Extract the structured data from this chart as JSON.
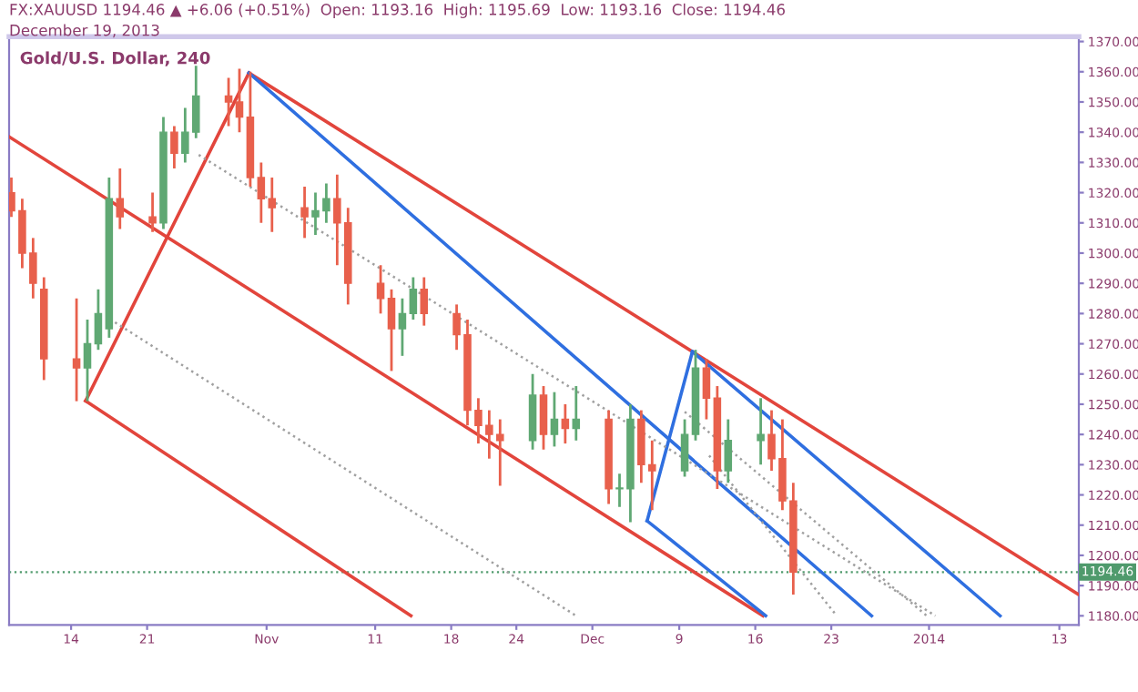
{
  "chart_data": {
    "type": "candlestick",
    "title": "Gold/U.S. Dollar, 240",
    "annotations": [
      "FX:XAUUSD 1194.46 ▲ +6.06 (+0.51%)  Open: 1193.16  High: 1195.69  Low: 1193.16  Close: 1194.46",
      "December 19, 2013"
    ],
    "xlim": [
      "2013-10-08T07:00",
      "2014-01-14T19:00"
    ],
    "ylim": [
      1177,
      1371.6
    ],
    "xticks": [
      {
        "value": "2013-10-14",
        "label": "14"
      },
      {
        "value": "2013-10-21",
        "label": "21"
      },
      {
        "value": "2013-11-01",
        "label": "Nov"
      },
      {
        "value": "2013-11-11",
        "label": "11"
      },
      {
        "value": "2013-11-18",
        "label": "18"
      },
      {
        "value": "2013-11-24",
        "label": "24"
      },
      {
        "value": "2013-12-01",
        "label": "Dec"
      },
      {
        "value": "2013-12-09",
        "label": "9"
      },
      {
        "value": "2013-12-16",
        "label": "16"
      },
      {
        "value": "2013-12-23",
        "label": "23"
      },
      {
        "value": "2014-01-01",
        "label": "2014"
      },
      {
        "value": "2014-01-13",
        "label": "13"
      }
    ],
    "yticks": [
      {
        "value": 1180,
        "label": "1180.00"
      },
      {
        "value": 1190,
        "label": "1190.00"
      },
      {
        "value": 1200,
        "label": "1200.00"
      },
      {
        "value": 1210,
        "label": "1210.00"
      },
      {
        "value": 1220,
        "label": "1220.00"
      },
      {
        "value": 1230,
        "label": "1230.00"
      },
      {
        "value": 1240,
        "label": "1240.00"
      },
      {
        "value": 1250,
        "label": "1250.00"
      },
      {
        "value": 1260,
        "label": "1260.00"
      },
      {
        "value": 1270,
        "label": "1270.00"
      },
      {
        "value": 1280,
        "label": "1280.00"
      },
      {
        "value": 1290,
        "label": "1290.00"
      },
      {
        "value": 1300,
        "label": "1300.00"
      },
      {
        "value": 1310,
        "label": "1310.00"
      },
      {
        "value": 1320,
        "label": "1320.00"
      },
      {
        "value": 1330,
        "label": "1330.00"
      },
      {
        "value": 1340,
        "label": "1340.00"
      },
      {
        "value": 1350,
        "label": "1350.00"
      },
      {
        "value": 1360,
        "label": "1360.00"
      },
      {
        "value": 1370,
        "label": "1370.00"
      }
    ],
    "grid": false,
    "ref_lines": [
      {
        "axis": "y",
        "value": 1194.46,
        "label": "1194.46",
        "color": "#4f9a6c",
        "line_style": "dotted"
      }
    ],
    "series": [
      {
        "type": "candlestick",
        "x": [
          "2013-10-08T12:00",
          "2013-10-09T12:00",
          "2013-10-10T12:00",
          "2013-10-11T12:00",
          "2013-10-14T12:00",
          "2013-10-15T12:00",
          "2013-10-16T12:00",
          "2013-10-17T12:00",
          "2013-10-18T12:00",
          "2013-10-21T12:00",
          "2013-10-22T12:00",
          "2013-10-23T12:00",
          "2013-10-24T12:00",
          "2013-10-25T12:00",
          "2013-10-28T12:00",
          "2013-10-29T12:00",
          "2013-10-30T12:00",
          "2013-10-31T12:00",
          "2013-11-01T12:00",
          "2013-11-04T12:00",
          "2013-11-05T12:00",
          "2013-11-06T12:00",
          "2013-11-07T12:00",
          "2013-11-08T12:00",
          "2013-11-11T12:00",
          "2013-11-12T12:00",
          "2013-11-13T12:00",
          "2013-11-14T12:00",
          "2013-11-15T12:00",
          "2013-11-18T12:00",
          "2013-11-19T12:00",
          "2013-11-20T12:00",
          "2013-11-21T12:00",
          "2013-11-22T12:00",
          "2013-11-25T12:00",
          "2013-11-26T12:00",
          "2013-11-27T12:00",
          "2013-11-28T12:00",
          "2013-11-29T12:00",
          "2013-12-02T12:00",
          "2013-12-03T12:00",
          "2013-12-04T12:00",
          "2013-12-05T12:00",
          "2013-12-06T12:00",
          "2013-12-09T12:00",
          "2013-12-10T12:00",
          "2013-12-11T12:00",
          "2013-12-12T12:00",
          "2013-12-13T12:00",
          "2013-12-16T12:00",
          "2013-12-17T12:00",
          "2013-12-18T12:00",
          "2013-12-19T12:00"
        ],
        "colors": [
          "#e8604c",
          "#e8604c",
          "#e8604c",
          "#e8604c",
          "#e8604c",
          "#5fa873",
          "#5fa873",
          "#5fa873",
          "#e8604c",
          "#e8604c",
          "#5fa873",
          "#e8604c",
          "#5fa873",
          "#5fa873",
          "#e8604c",
          "#e8604c",
          "#e8604c",
          "#e8604c",
          "#e8604c",
          "#e8604c",
          "#5fa873",
          "#5fa873",
          "#e8604c",
          "#e8604c",
          "#e8604c",
          "#e8604c",
          "#5fa873",
          "#5fa873",
          "#e8604c",
          "#e8604c",
          "#e8604c",
          "#e8604c",
          "#e8604c",
          "#e8604c",
          "#5fa873",
          "#e8604c",
          "#5fa873",
          "#e8604c",
          "#5fa873",
          "#e8604c",
          "#5fa873",
          "#5fa873",
          "#e8604c",
          "#e8604c",
          "#5fa873",
          "#5fa873",
          "#e8604c",
          "#e8604c",
          "#5fa873",
          "#5fa873",
          "#e8604c",
          "#e8604c",
          "#e8604c"
        ],
        "ohlc": [
          [
            1320,
            1325,
            1312,
            1314
          ],
          [
            1314,
            1318,
            1295,
            1300
          ],
          [
            1300,
            1305,
            1285,
            1290
          ],
          [
            1288,
            1292,
            1258,
            1265
          ],
          [
            1265,
            1285,
            1251,
            1262
          ],
          [
            1262,
            1278,
            1251,
            1270
          ],
          [
            1270,
            1288,
            1268,
            1280
          ],
          [
            1275,
            1325,
            1272,
            1318
          ],
          [
            1318,
            1328,
            1308,
            1312
          ],
          [
            1312,
            1320,
            1307,
            1310
          ],
          [
            1310,
            1345,
            1308,
            1340
          ],
          [
            1340,
            1342,
            1328,
            1333
          ],
          [
            1333,
            1348,
            1330,
            1340
          ],
          [
            1340,
            1362,
            1338,
            1352
          ],
          [
            1352,
            1358,
            1342,
            1350
          ],
          [
            1350,
            1361,
            1340,
            1345
          ],
          [
            1345,
            1360,
            1322,
            1325
          ],
          [
            1325,
            1330,
            1310,
            1318
          ],
          [
            1318,
            1325,
            1307,
            1315
          ],
          [
            1315,
            1322,
            1305,
            1312
          ],
          [
            1312,
            1320,
            1306,
            1314
          ],
          [
            1314,
            1323,
            1310,
            1318
          ],
          [
            1318,
            1326,
            1296,
            1310
          ],
          [
            1310,
            1315,
            1283,
            1290
          ],
          [
            1290,
            1296,
            1280,
            1285
          ],
          [
            1285,
            1288,
            1261,
            1275
          ],
          [
            1275,
            1285,
            1266,
            1280
          ],
          [
            1280,
            1292,
            1278,
            1288
          ],
          [
            1288,
            1292,
            1276,
            1280
          ],
          [
            1280,
            1283,
            1268,
            1273
          ],
          [
            1273,
            1278,
            1243,
            1248
          ],
          [
            1248,
            1252,
            1237,
            1243
          ],
          [
            1243,
            1248,
            1232,
            1240
          ],
          [
            1240,
            1245,
            1223,
            1238
          ],
          [
            1238,
            1260,
            1235,
            1253
          ],
          [
            1253,
            1256,
            1235,
            1240
          ],
          [
            1240,
            1254,
            1236,
            1245
          ],
          [
            1245,
            1250,
            1237,
            1242
          ],
          [
            1242,
            1256,
            1238,
            1245
          ],
          [
            1245,
            1248,
            1217,
            1222
          ],
          [
            1222,
            1227,
            1216,
            1222
          ],
          [
            1222,
            1250,
            1211,
            1245
          ],
          [
            1245,
            1248,
            1224,
            1230
          ],
          [
            1230,
            1238,
            1215,
            1228
          ],
          [
            1228,
            1245,
            1226,
            1240
          ],
          [
            1240,
            1268,
            1238,
            1262
          ],
          [
            1262,
            1265,
            1245,
            1252
          ],
          [
            1252,
            1256,
            1222,
            1228
          ],
          [
            1228,
            1245,
            1224,
            1238
          ],
          [
            1238,
            1252,
            1230,
            1240
          ],
          [
            1240,
            1248,
            1228,
            1232
          ],
          [
            1232,
            1245,
            1215,
            1218
          ],
          [
            1218,
            1224,
            1187,
            1194.46
          ]
        ]
      },
      {
        "type": "line",
        "color": "#e2453c",
        "x": [
          "2013-10-15T08:00",
          "2013-10-30T09:00"
        ],
        "values": [
          1251.1,
          1359.6
        ]
      },
      {
        "type": "line",
        "color": "#e2453c",
        "x": [
          "2013-10-30T09:00",
          "2014-01-14T17:00"
        ],
        "values": [
          1359.6,
          1187.2
        ]
      },
      {
        "type": "line",
        "color": "#e2453c",
        "x": [
          "2013-10-08T07:00",
          "2013-12-16T17:00"
        ],
        "values": [
          1338.5,
          1180
        ]
      },
      {
        "type": "line",
        "color": "#e2453c",
        "x": [
          "2013-10-15T08:00",
          "2013-11-14T07:00"
        ],
        "values": [
          1251.1,
          1180
        ]
      },
      {
        "type": "line",
        "color": "#2f6fe0",
        "x": [
          "2013-10-30T09:00",
          "2013-12-26T17:00"
        ],
        "values": [
          1359.6,
          1180
        ]
      },
      {
        "type": "line",
        "color": "#2f6fe0",
        "x": [
          "2013-12-06T01:00",
          "2013-12-10T05:00"
        ],
        "values": [
          1211.4,
          1267.4
        ]
      },
      {
        "type": "line",
        "color": "#2f6fe0",
        "x": [
          "2013-12-06T01:00",
          "2013-12-16T23:00"
        ],
        "values": [
          1211.4,
          1180
        ]
      },
      {
        "type": "line",
        "color": "#2f6fe0",
        "x": [
          "2013-12-10T05:00",
          "2014-01-07T13:00"
        ],
        "values": [
          1267.4,
          1180
        ]
      },
      {
        "type": "line",
        "color": "#a0a0a0",
        "line_style": "dotted",
        "x": [
          "2013-10-25T18:00",
          "2014-01-01T14:00"
        ],
        "values": [
          1332.5,
          1180
        ]
      },
      {
        "type": "line",
        "color": "#a0a0a0",
        "line_style": "dotted",
        "x": [
          "2013-10-18T01:00",
          "2013-11-29T12:00"
        ],
        "values": [
          1277.1,
          1180
        ]
      },
      {
        "type": "line",
        "color": "#a0a0a0",
        "line_style": "dotted",
        "x": [
          "2013-12-09T12:00",
          "2013-12-31T19:00"
        ],
        "values": [
          1247.5,
          1180
        ]
      },
      {
        "type": "line",
        "color": "#a0a0a0",
        "line_style": "dotted",
        "x": [
          "2013-12-11T18:00",
          "2013-12-23T12:00"
        ],
        "values": [
          1233.0,
          1180
        ]
      }
    ]
  }
}
